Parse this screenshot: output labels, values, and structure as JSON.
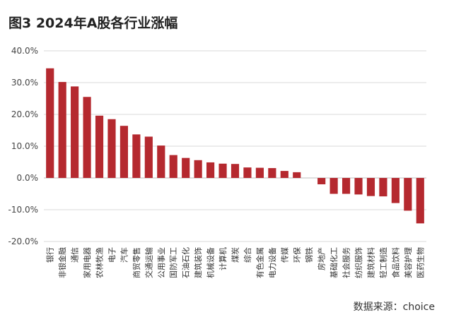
{
  "figure": {
    "title": "图3  2024年A股各行业涨幅",
    "source": "数据来源：choice"
  },
  "colors": {
    "bar": "#b5292f",
    "grid": "#d9d9d9",
    "zero": "#bfbfbf"
  },
  "chart_data": {
    "type": "bar",
    "title": "图3  2024年A股各行业涨幅",
    "xlabel": "",
    "ylabel": "",
    "ylim": [
      -20,
      40
    ],
    "yticks": [
      40,
      30,
      20,
      10,
      0,
      -10,
      -20
    ],
    "ytick_labels": [
      "40.0%",
      "30.0%",
      "20.0%",
      "10.0%",
      "0.0%",
      "-10.0%",
      "-20.0%"
    ],
    "grid": true,
    "legend": "none",
    "categories": [
      "银行",
      "非银金融",
      "通信",
      "家用电器",
      "农林牧渔",
      "电子",
      "汽车",
      "商贸零售",
      "交通运输",
      "公用事业",
      "国防军工",
      "石油石化",
      "建筑装饰",
      "机械设备",
      "计算机",
      "煤炭",
      "综合",
      "有色金属",
      "电力设备",
      "传媒",
      "环保",
      "钢铁",
      "房地产",
      "基础化工",
      "社会服务",
      "纺织服饰",
      "建筑材料",
      "轻工制造",
      "食品饮料",
      "美容护理",
      "医药生物"
    ],
    "values": [
      34.5,
      30.2,
      28.8,
      25.5,
      19.6,
      18.5,
      16.4,
      13.7,
      13.0,
      10.2,
      7.2,
      6.3,
      5.6,
      4.9,
      4.5,
      4.4,
      3.3,
      3.2,
      3.1,
      2.2,
      1.8,
      0.0,
      -2.0,
      -5.0,
      -5.0,
      -5.2,
      -5.7,
      -5.8,
      -7.9,
      -10.3,
      -14.3
    ]
  }
}
